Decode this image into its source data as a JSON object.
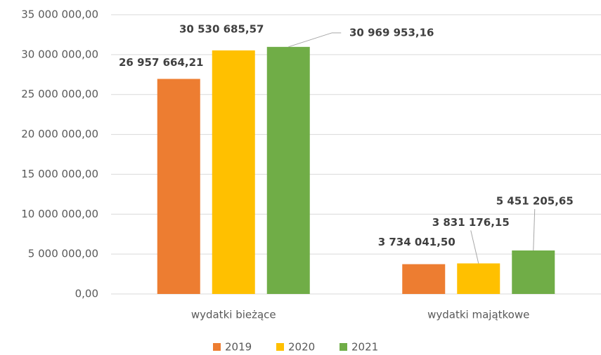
{
  "chart_data": {
    "type": "bar",
    "categories": [
      "wydatki bieżące",
      "wydatki majątkowe"
    ],
    "series": [
      {
        "name": "2019",
        "color": "#ED7D31",
        "values": [
          26957664.21,
          3734041.5
        ],
        "value_labels": [
          "26 957 664,21",
          "3 734 041,50"
        ]
      },
      {
        "name": "2020",
        "color": "#FFC000",
        "values": [
          30530685.57,
          3831176.15
        ],
        "value_labels": [
          "30 530 685,57",
          "3 831 176,15"
        ]
      },
      {
        "name": "2021",
        "color": "#70AD47",
        "values": [
          30969953.16,
          5451205.65
        ],
        "value_labels": [
          "30 969 953,16",
          "5 451 205,65"
        ]
      }
    ],
    "ylim": [
      0,
      35000000
    ],
    "yticks": [
      {
        "value": 0,
        "label": "0,00"
      },
      {
        "value": 5000000,
        "label": "5 000 000,00"
      },
      {
        "value": 10000000,
        "label": "10 000 000,00"
      },
      {
        "value": 15000000,
        "label": "15 000 000,00"
      },
      {
        "value": 20000000,
        "label": "20 000 000,00"
      },
      {
        "value": 25000000,
        "label": "25 000 000,00"
      },
      {
        "value": 30000000,
        "label": "30 000 000,00"
      },
      {
        "value": 35000000,
        "label": "35 000 000,00"
      }
    ],
    "grid": true,
    "legend": "bottom"
  }
}
